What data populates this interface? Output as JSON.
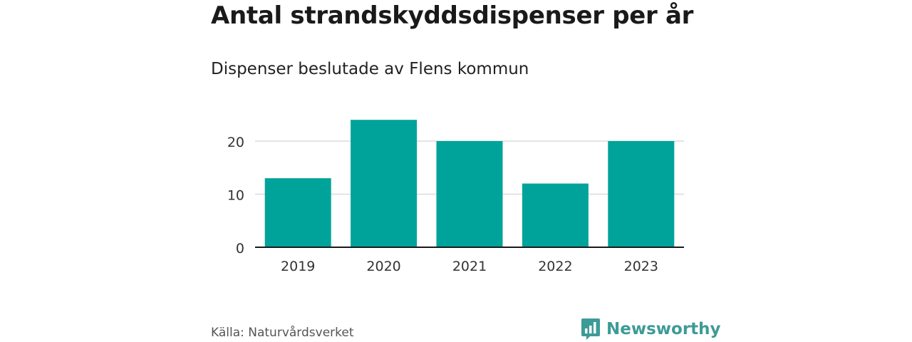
{
  "header": {
    "title": "Antal strandskyddsdispenser per år",
    "subtitle": "Dispenser beslutade av Flens kommun"
  },
  "footer": {
    "source": "Källa: Naturvårdsverket",
    "brand": "Newsworthy",
    "brand_color": "#3d9b97"
  },
  "chart_data": {
    "type": "bar",
    "title": "Antal strandskyddsdispenser per år",
    "subtitle": "Dispenser beslutade av Flens kommun",
    "categories": [
      "2019",
      "2020",
      "2021",
      "2022",
      "2023"
    ],
    "values": [
      13,
      24,
      20,
      12,
      20
    ],
    "ylim": [
      0,
      25
    ],
    "yticks": [
      0,
      10,
      20
    ],
    "grid": true,
    "bar_color": "#00a39a"
  }
}
